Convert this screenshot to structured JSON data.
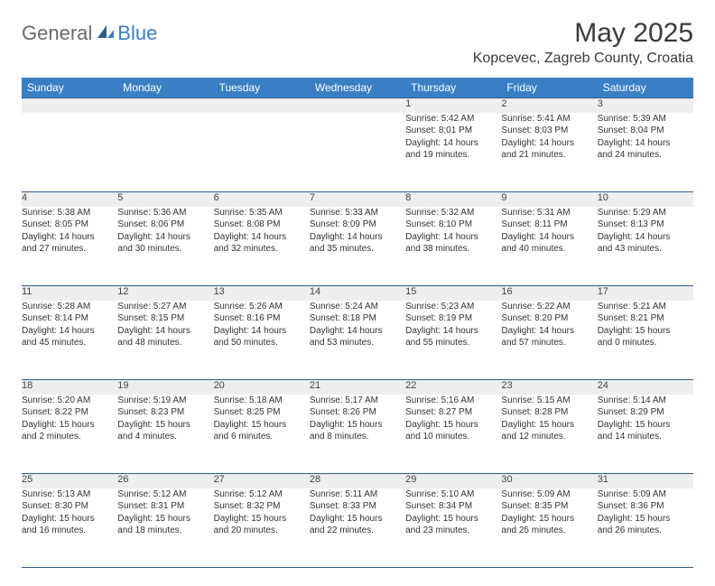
{
  "logo": {
    "text_general": "General",
    "text_blue": "Blue"
  },
  "title": "May 2025",
  "location": "Kopcevec, Zagreb County, Croatia",
  "colors": {
    "header_bg": "#3a7fc4",
    "header_text": "#ffffff",
    "daynum_bg": "#eeeeee",
    "border": "#2c5f8d",
    "text": "#333333"
  },
  "day_headers": [
    "Sunday",
    "Monday",
    "Tuesday",
    "Wednesday",
    "Thursday",
    "Friday",
    "Saturday"
  ],
  "weeks": [
    [
      {
        "n": "",
        "l1": "",
        "l2": "",
        "l3": "",
        "l4": ""
      },
      {
        "n": "",
        "l1": "",
        "l2": "",
        "l3": "",
        "l4": ""
      },
      {
        "n": "",
        "l1": "",
        "l2": "",
        "l3": "",
        "l4": ""
      },
      {
        "n": "",
        "l1": "",
        "l2": "",
        "l3": "",
        "l4": ""
      },
      {
        "n": "1",
        "l1": "Sunrise: 5:42 AM",
        "l2": "Sunset: 8:01 PM",
        "l3": "Daylight: 14 hours",
        "l4": "and 19 minutes."
      },
      {
        "n": "2",
        "l1": "Sunrise: 5:41 AM",
        "l2": "Sunset: 8:03 PM",
        "l3": "Daylight: 14 hours",
        "l4": "and 21 minutes."
      },
      {
        "n": "3",
        "l1": "Sunrise: 5:39 AM",
        "l2": "Sunset: 8:04 PM",
        "l3": "Daylight: 14 hours",
        "l4": "and 24 minutes."
      }
    ],
    [
      {
        "n": "4",
        "l1": "Sunrise: 5:38 AM",
        "l2": "Sunset: 8:05 PM",
        "l3": "Daylight: 14 hours",
        "l4": "and 27 minutes."
      },
      {
        "n": "5",
        "l1": "Sunrise: 5:36 AM",
        "l2": "Sunset: 8:06 PM",
        "l3": "Daylight: 14 hours",
        "l4": "and 30 minutes."
      },
      {
        "n": "6",
        "l1": "Sunrise: 5:35 AM",
        "l2": "Sunset: 8:08 PM",
        "l3": "Daylight: 14 hours",
        "l4": "and 32 minutes."
      },
      {
        "n": "7",
        "l1": "Sunrise: 5:33 AM",
        "l2": "Sunset: 8:09 PM",
        "l3": "Daylight: 14 hours",
        "l4": "and 35 minutes."
      },
      {
        "n": "8",
        "l1": "Sunrise: 5:32 AM",
        "l2": "Sunset: 8:10 PM",
        "l3": "Daylight: 14 hours",
        "l4": "and 38 minutes."
      },
      {
        "n": "9",
        "l1": "Sunrise: 5:31 AM",
        "l2": "Sunset: 8:11 PM",
        "l3": "Daylight: 14 hours",
        "l4": "and 40 minutes."
      },
      {
        "n": "10",
        "l1": "Sunrise: 5:29 AM",
        "l2": "Sunset: 8:13 PM",
        "l3": "Daylight: 14 hours",
        "l4": "and 43 minutes."
      }
    ],
    [
      {
        "n": "11",
        "l1": "Sunrise: 5:28 AM",
        "l2": "Sunset: 8:14 PM",
        "l3": "Daylight: 14 hours",
        "l4": "and 45 minutes."
      },
      {
        "n": "12",
        "l1": "Sunrise: 5:27 AM",
        "l2": "Sunset: 8:15 PM",
        "l3": "Daylight: 14 hours",
        "l4": "and 48 minutes."
      },
      {
        "n": "13",
        "l1": "Sunrise: 5:26 AM",
        "l2": "Sunset: 8:16 PM",
        "l3": "Daylight: 14 hours",
        "l4": "and 50 minutes."
      },
      {
        "n": "14",
        "l1": "Sunrise: 5:24 AM",
        "l2": "Sunset: 8:18 PM",
        "l3": "Daylight: 14 hours",
        "l4": "and 53 minutes."
      },
      {
        "n": "15",
        "l1": "Sunrise: 5:23 AM",
        "l2": "Sunset: 8:19 PM",
        "l3": "Daylight: 14 hours",
        "l4": "and 55 minutes."
      },
      {
        "n": "16",
        "l1": "Sunrise: 5:22 AM",
        "l2": "Sunset: 8:20 PM",
        "l3": "Daylight: 14 hours",
        "l4": "and 57 minutes."
      },
      {
        "n": "17",
        "l1": "Sunrise: 5:21 AM",
        "l2": "Sunset: 8:21 PM",
        "l3": "Daylight: 15 hours",
        "l4": "and 0 minutes."
      }
    ],
    [
      {
        "n": "18",
        "l1": "Sunrise: 5:20 AM",
        "l2": "Sunset: 8:22 PM",
        "l3": "Daylight: 15 hours",
        "l4": "and 2 minutes."
      },
      {
        "n": "19",
        "l1": "Sunrise: 5:19 AM",
        "l2": "Sunset: 8:23 PM",
        "l3": "Daylight: 15 hours",
        "l4": "and 4 minutes."
      },
      {
        "n": "20",
        "l1": "Sunrise: 5:18 AM",
        "l2": "Sunset: 8:25 PM",
        "l3": "Daylight: 15 hours",
        "l4": "and 6 minutes."
      },
      {
        "n": "21",
        "l1": "Sunrise: 5:17 AM",
        "l2": "Sunset: 8:26 PM",
        "l3": "Daylight: 15 hours",
        "l4": "and 8 minutes."
      },
      {
        "n": "22",
        "l1": "Sunrise: 5:16 AM",
        "l2": "Sunset: 8:27 PM",
        "l3": "Daylight: 15 hours",
        "l4": "and 10 minutes."
      },
      {
        "n": "23",
        "l1": "Sunrise: 5:15 AM",
        "l2": "Sunset: 8:28 PM",
        "l3": "Daylight: 15 hours",
        "l4": "and 12 minutes."
      },
      {
        "n": "24",
        "l1": "Sunrise: 5:14 AM",
        "l2": "Sunset: 8:29 PM",
        "l3": "Daylight: 15 hours",
        "l4": "and 14 minutes."
      }
    ],
    [
      {
        "n": "25",
        "l1": "Sunrise: 5:13 AM",
        "l2": "Sunset: 8:30 PM",
        "l3": "Daylight: 15 hours",
        "l4": "and 16 minutes."
      },
      {
        "n": "26",
        "l1": "Sunrise: 5:12 AM",
        "l2": "Sunset: 8:31 PM",
        "l3": "Daylight: 15 hours",
        "l4": "and 18 minutes."
      },
      {
        "n": "27",
        "l1": "Sunrise: 5:12 AM",
        "l2": "Sunset: 8:32 PM",
        "l3": "Daylight: 15 hours",
        "l4": "and 20 minutes."
      },
      {
        "n": "28",
        "l1": "Sunrise: 5:11 AM",
        "l2": "Sunset: 8:33 PM",
        "l3": "Daylight: 15 hours",
        "l4": "and 22 minutes."
      },
      {
        "n": "29",
        "l1": "Sunrise: 5:10 AM",
        "l2": "Sunset: 8:34 PM",
        "l3": "Daylight: 15 hours",
        "l4": "and 23 minutes."
      },
      {
        "n": "30",
        "l1": "Sunrise: 5:09 AM",
        "l2": "Sunset: 8:35 PM",
        "l3": "Daylight: 15 hours",
        "l4": "and 25 minutes."
      },
      {
        "n": "31",
        "l1": "Sunrise: 5:09 AM",
        "l2": "Sunset: 8:36 PM",
        "l3": "Daylight: 15 hours",
        "l4": "and 26 minutes."
      }
    ]
  ]
}
